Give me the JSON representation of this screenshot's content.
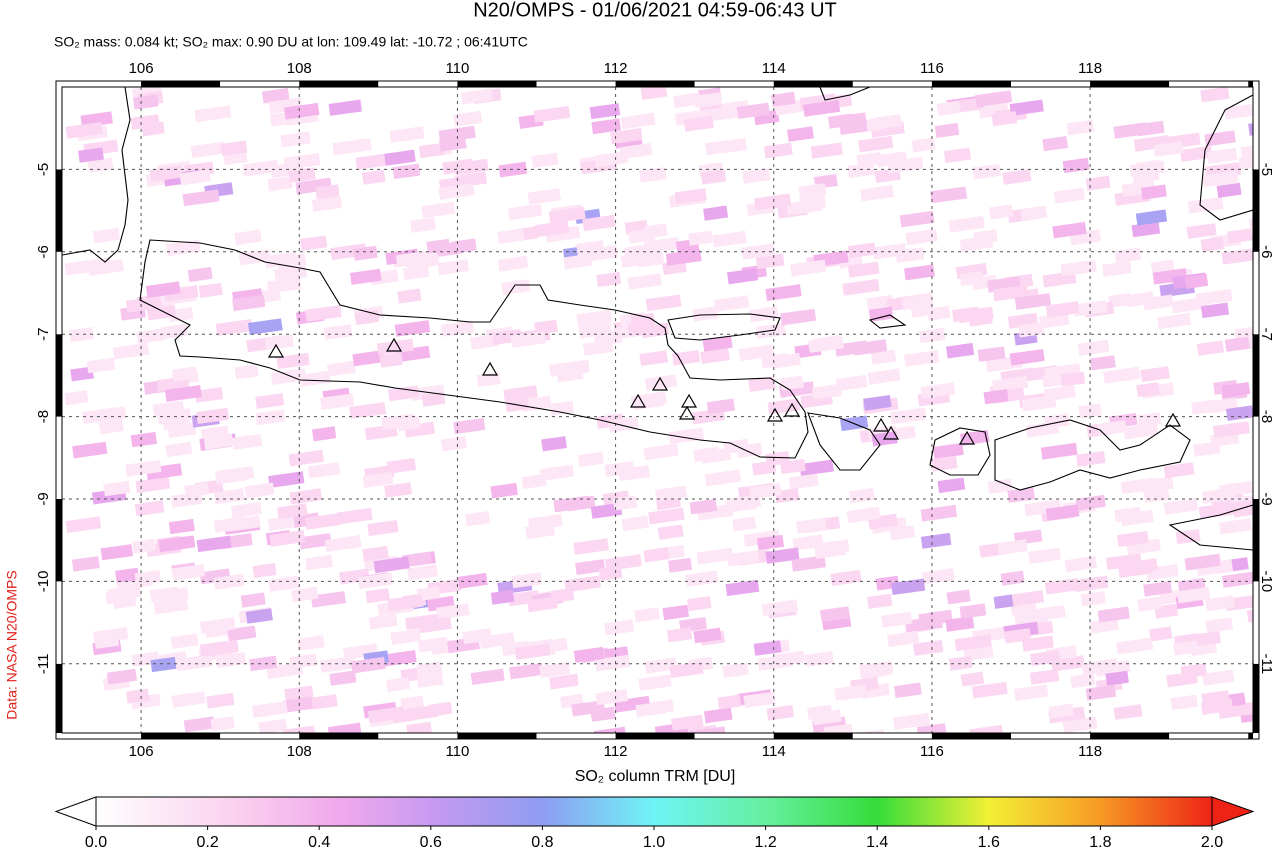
{
  "title": "N20/OMPS - 01/06/2021 04:59-06:43 UT",
  "subtitle": "SO₂ mass: 0.084 kt; SO₂ max: 0.90 DU at lon: 109.49 lat: -10.72 ; 06:41UTC",
  "credit": "Data: NASA N20/OMPS",
  "map": {
    "xlim": [
      105,
      120.06
    ],
    "ylim": [
      -11.84,
      -4
    ],
    "xticks": [
      106,
      108,
      110,
      112,
      114,
      116,
      118
    ],
    "yticks": [
      -5,
      -6,
      -7,
      -8,
      -9,
      -10,
      -11
    ],
    "grid": true
  },
  "colorbar": {
    "label": "SO₂ column TRM [DU]",
    "lim": [
      0,
      2
    ],
    "ticks": [
      {
        "value": 0,
        "label": "0.0"
      },
      {
        "value": 0.2,
        "label": "0.2"
      },
      {
        "value": 0.4,
        "label": "0.4"
      },
      {
        "value": 0.6,
        "label": "0.6"
      },
      {
        "value": 0.8,
        "label": "0.8"
      },
      {
        "value": 1,
        "label": "1.0"
      },
      {
        "value": 1.2,
        "label": "1.2"
      },
      {
        "value": 1.4,
        "label": "1.4"
      },
      {
        "value": 1.6,
        "label": "1.6"
      },
      {
        "value": 1.8,
        "label": "1.8"
      },
      {
        "value": 2,
        "label": "2.0"
      }
    ]
  }
}
